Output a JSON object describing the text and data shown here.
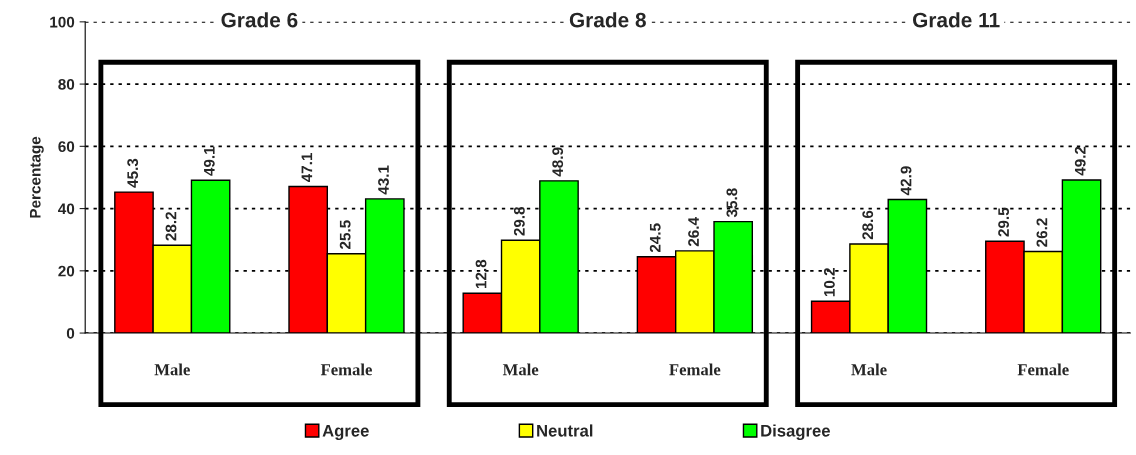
{
  "chart_data": {
    "type": "bar",
    "ylabel": "Percentage",
    "annotations": [
      "Grade 6",
      "Grade 8",
      "Grade 11"
    ],
    "categories": [
      "Male",
      "Female",
      "Male",
      "Female",
      "Male",
      "Female"
    ],
    "series": [
      {
        "name": "Agree",
        "color": "#ff0000",
        "values": [
          45.3,
          47.1,
          12.8,
          24.5,
          10.2,
          29.5
        ]
      },
      {
        "name": "Neutral",
        "color": "#ffff00",
        "values": [
          28.2,
          25.5,
          29.8,
          26.4,
          28.6,
          26.2
        ]
      },
      {
        "name": "Disagree",
        "color": "#00ff00",
        "values": [
          49.1,
          43.1,
          48.9,
          35.8,
          42.9,
          49.2
        ]
      }
    ],
    "ylim": [
      0,
      100
    ],
    "yticks": [
      0,
      20,
      40,
      60,
      80,
      100
    ],
    "grid": "y",
    "legend": "bottom",
    "data_labels": true
  }
}
